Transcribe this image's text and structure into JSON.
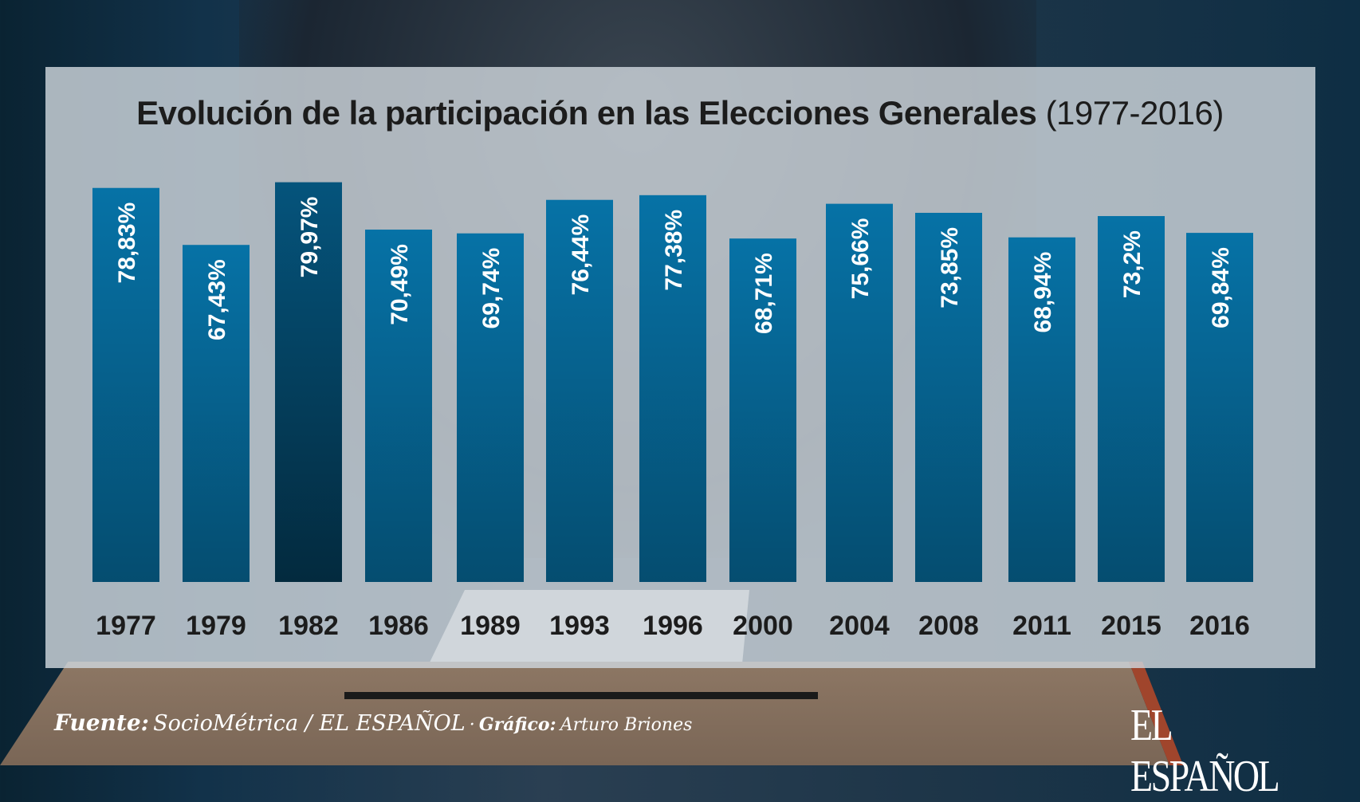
{
  "chart_data": {
    "type": "bar",
    "title": "Evolución de la participación en las Elecciones Generales",
    "subtitle": "(1977-2016)",
    "categories": [
      "1977",
      "1979",
      "1982",
      "1986",
      "1989",
      "1993",
      "1996",
      "2000",
      "2004",
      "2008",
      "2011",
      "2015",
      "2016"
    ],
    "values": [
      78.83,
      67.43,
      79.97,
      70.49,
      69.74,
      76.44,
      77.38,
      68.71,
      75.66,
      73.85,
      68.94,
      73.2,
      69.84
    ],
    "data_labels": [
      "78,83%",
      "67,43%",
      "79,97%",
      "70,49%",
      "69,74%",
      "76,44%",
      "77,38%",
      "68,71%",
      "75,66%",
      "73,85%",
      "68,94%",
      "73,2%",
      "69,84%"
    ],
    "highlight": "1982",
    "colors": {
      "bar_top": "#0672a6",
      "bar_bottom": "#054d70",
      "highlight_top": "#05547c",
      "highlight_bottom": "#032a3e"
    },
    "xlabel": "",
    "ylabel": "",
    "ylim": [
      0,
      80
    ],
    "grid": false
  },
  "footer": {
    "source_label": "Fuente:",
    "source": "SocioMétrica / EL ESPAÑOL",
    "separator": "·",
    "graphic_label": "Gráfico:",
    "graphic": "Arturo Briones"
  },
  "logo": "EL ESPAÑOL"
}
